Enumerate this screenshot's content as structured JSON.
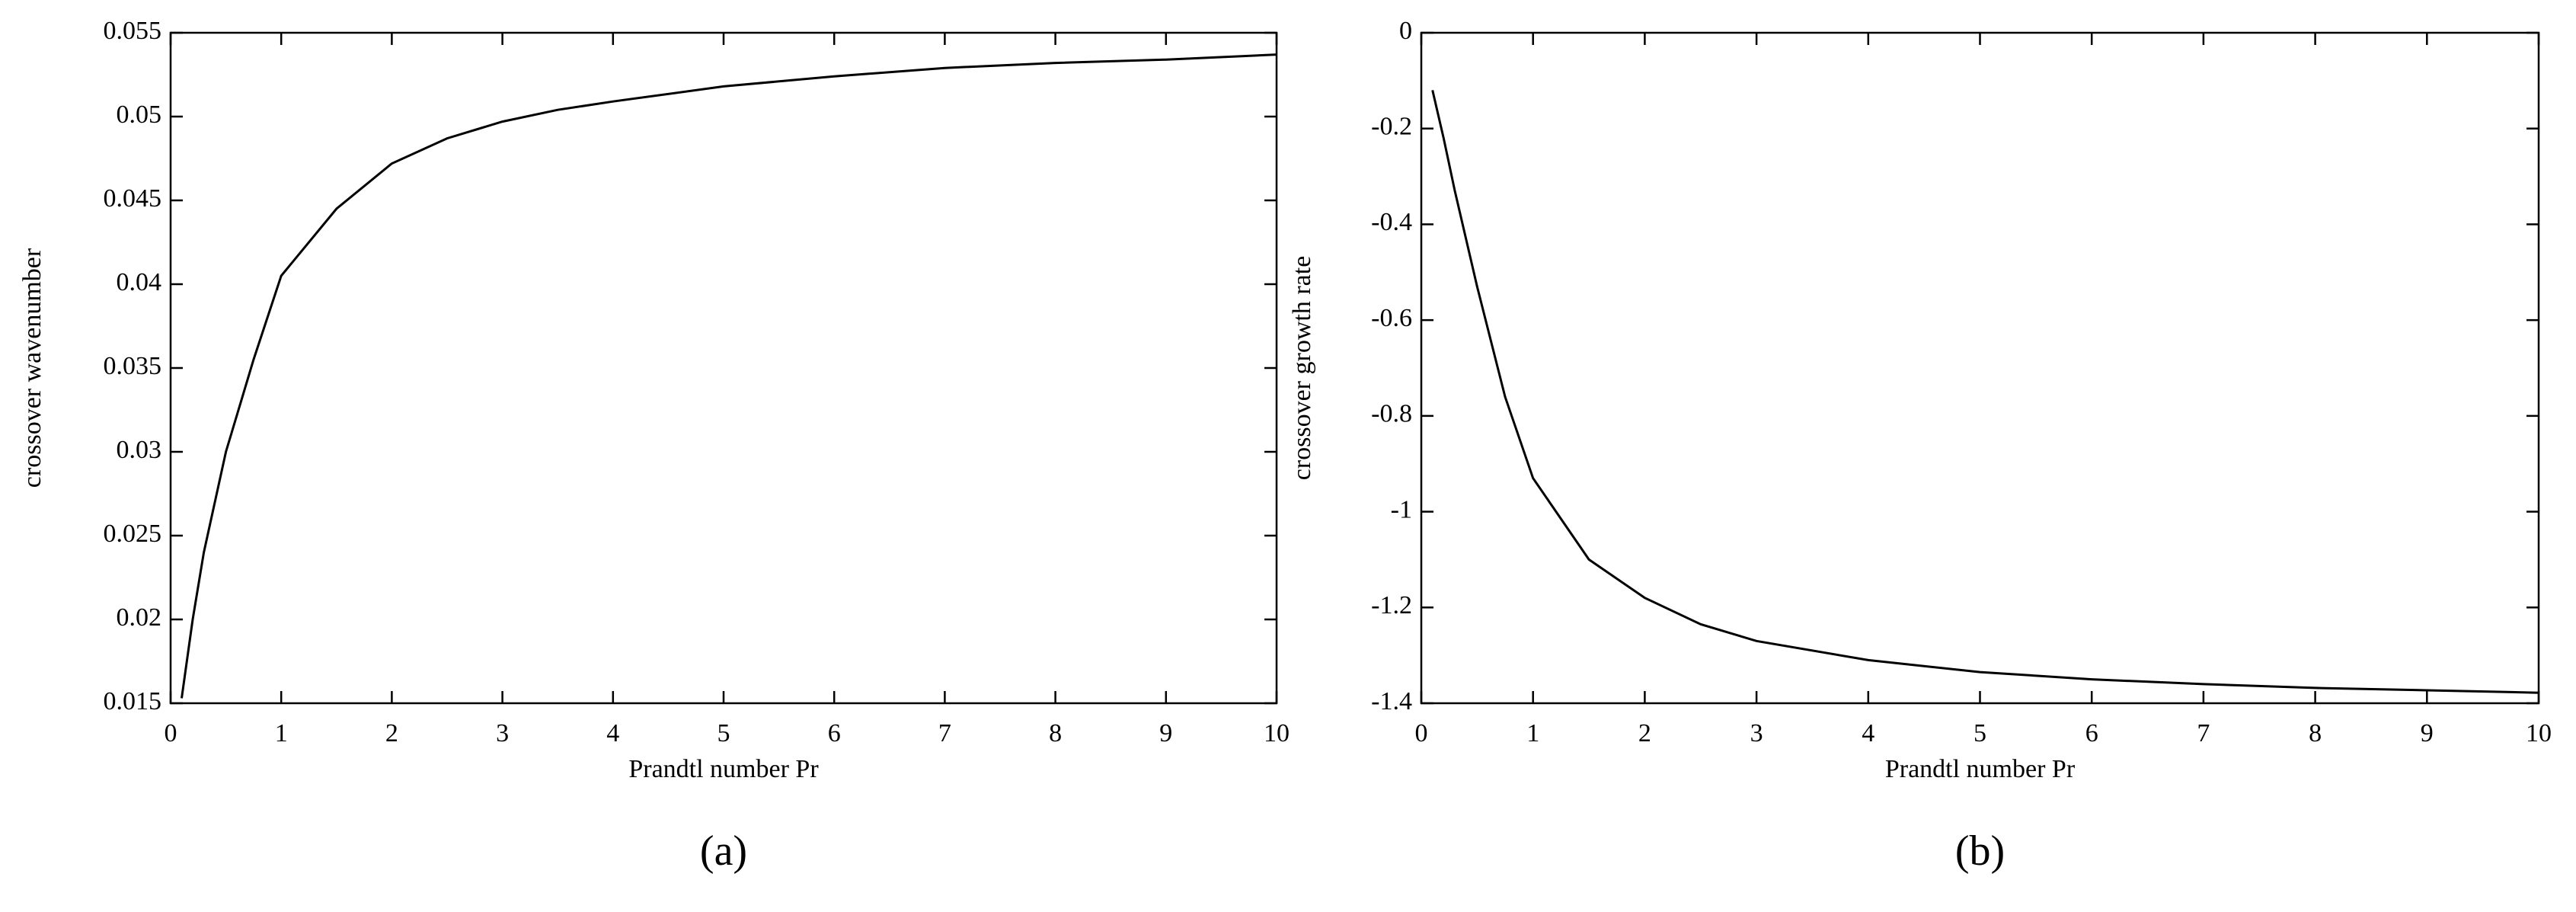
{
  "chart_data": [
    {
      "type": "line",
      "label": "(a)",
      "xlabel": "Prandtl number Pr",
      "ylabel": "crossover wavenumber",
      "color": "#000000",
      "x": [
        0.1,
        0.2,
        0.3,
        0.5,
        0.75,
        1,
        1.5,
        2,
        2.5,
        3,
        3.5,
        4,
        5,
        6,
        7,
        8,
        9,
        10
      ],
      "values": [
        0.0153,
        0.02,
        0.024,
        0.03,
        0.0355,
        0.0405,
        0.0445,
        0.0472,
        0.0487,
        0.0497,
        0.0504,
        0.0509,
        0.0518,
        0.0524,
        0.0529,
        0.0532,
        0.0534,
        0.0537
      ],
      "xlim": [
        0,
        10
      ],
      "xticks": [
        0,
        1,
        2,
        3,
        4,
        5,
        6,
        7,
        8,
        9,
        10
      ],
      "ylim": [
        0.015,
        0.055
      ],
      "yticks": [
        0.015,
        0.02,
        0.025,
        0.03,
        0.035,
        0.04,
        0.045,
        0.05,
        0.055
      ]
    },
    {
      "type": "line",
      "label": "(b)",
      "xlabel": "Prandtl number Pr",
      "ylabel": "crossover growth rate",
      "color": "#000000",
      "x": [
        0.1,
        0.2,
        0.3,
        0.5,
        0.75,
        1,
        1.5,
        2,
        2.5,
        3,
        4,
        5,
        6,
        7,
        8,
        9,
        10
      ],
      "values": [
        -0.12,
        -0.22,
        -0.33,
        -0.53,
        -0.76,
        -0.93,
        -1.1,
        -1.18,
        -1.235,
        -1.27,
        -1.31,
        -1.335,
        -1.35,
        -1.36,
        -1.368,
        -1.373,
        -1.378
      ],
      "xlim": [
        0,
        10
      ],
      "xticks": [
        0,
        1,
        2,
        3,
        4,
        5,
        6,
        7,
        8,
        9,
        10
      ],
      "ylim": [
        -1.4,
        0
      ],
      "yticks": [
        -1.4,
        -1.2,
        -1,
        -0.8,
        -0.6,
        -0.4,
        -0.2,
        0
      ]
    }
  ]
}
